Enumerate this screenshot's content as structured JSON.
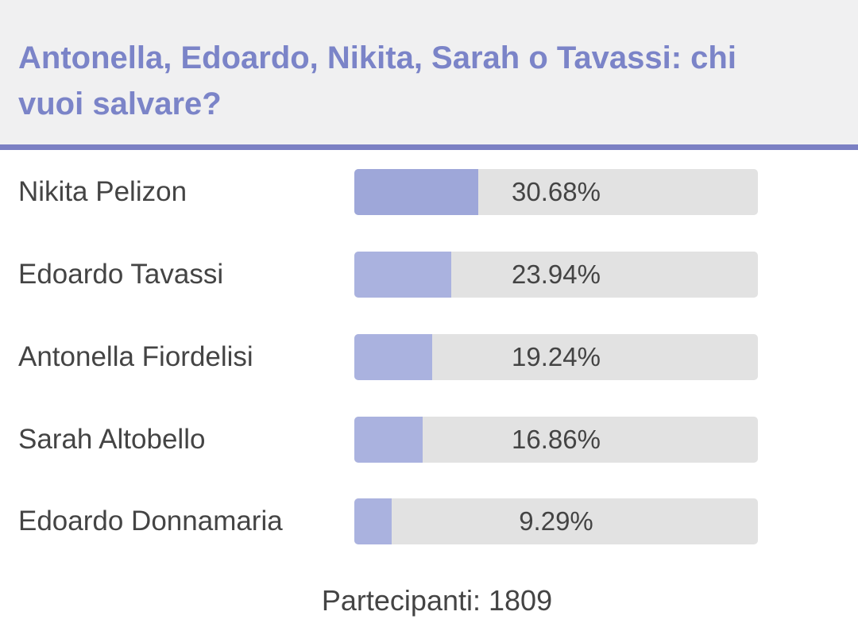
{
  "poll": {
    "question": "Antonella, Edoardo, Nikita, Sarah o Tavassi: chi vuoi salvare?",
    "options": [
      {
        "name": "Nikita Pelizon",
        "percent_label": "30.68%",
        "fraction": 0.3068,
        "bar_color": "#9ea7d9"
      },
      {
        "name": "Edoardo Tavassi",
        "percent_label": "23.94%",
        "fraction": 0.2394,
        "bar_color": "#aab2df"
      },
      {
        "name": "Antonella Fiordelisi",
        "percent_label": "19.24%",
        "fraction": 0.1924,
        "bar_color": "#aab2df"
      },
      {
        "name": "Sarah Altobello",
        "percent_label": "16.86%",
        "fraction": 0.1686,
        "bar_color": "#aab2df"
      },
      {
        "name": "Edoardo Donnamaria",
        "percent_label": "9.29%",
        "fraction": 0.0929,
        "bar_color": "#aab2df"
      }
    ],
    "participants_label": "Partecipanti: 1809"
  },
  "colors": {
    "question_text": "#7b84c8",
    "header_background": "#f0f0f1",
    "header_rule": "#7b80c3",
    "bar_track": "#e2e2e2",
    "body_text": "#444444"
  }
}
